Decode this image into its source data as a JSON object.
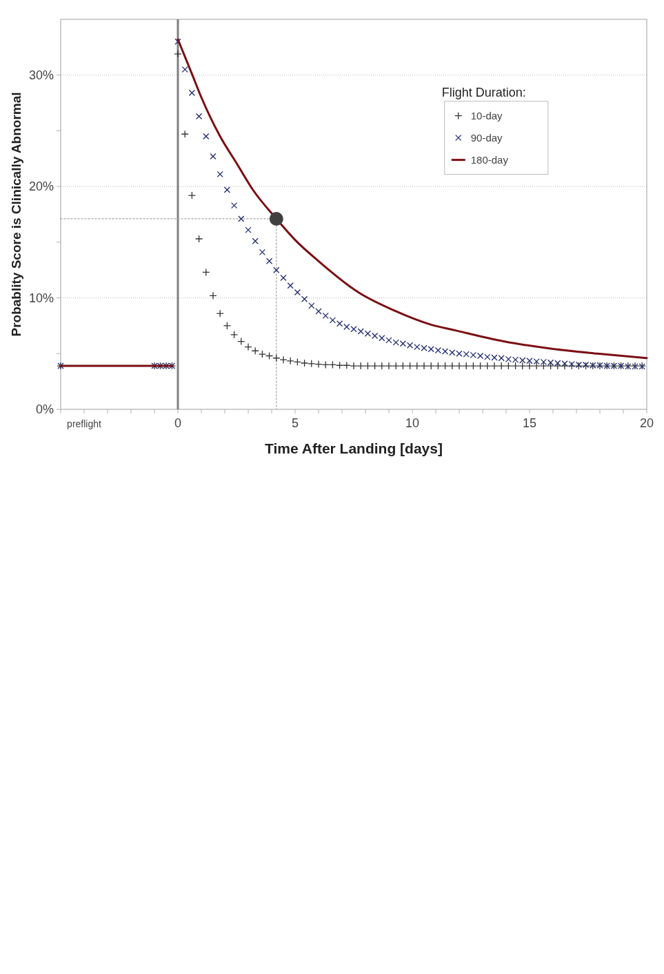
{
  "chart_data": {
    "type": "scatter",
    "xlabel": "Time After Landing [days]",
    "ylabel": "Probablity Score is Clinically Abnormal",
    "legend_title": "Flight Duration:",
    "xlim": [
      -5,
      20
    ],
    "ylim": [
      0,
      35
    ],
    "xticks": [
      {
        "value": -5,
        "label": null
      },
      {
        "value": -4,
        "label": "preflight"
      },
      {
        "value": -3,
        "label": null
      },
      {
        "value": -2,
        "label": null
      },
      {
        "value": -1,
        "label": null
      },
      0,
      {
        "value": 1,
        "label": null
      },
      {
        "value": 2,
        "label": null
      },
      {
        "value": 3,
        "label": null
      },
      {
        "value": 4,
        "label": null
      },
      5,
      {
        "value": 6,
        "label": null
      },
      {
        "value": 7,
        "label": null
      },
      {
        "value": 8,
        "label": null
      },
      {
        "value": 9,
        "label": null
      },
      10,
      {
        "value": 11,
        "label": null
      },
      {
        "value": 12,
        "label": null
      },
      {
        "value": 13,
        "label": null
      },
      {
        "value": 14,
        "label": null
      },
      15,
      {
        "value": 16,
        "label": null
      },
      {
        "value": 17,
        "label": null
      },
      {
        "value": 18,
        "label": null
      },
      {
        "value": 19,
        "label": null
      },
      20
    ],
    "yticks": [
      {
        "value": 0,
        "label": "0%"
      },
      {
        "value": 5,
        "label": null
      },
      {
        "value": 10,
        "label": "10%"
      },
      {
        "value": 15,
        "label": null
      },
      {
        "value": 20,
        "label": "20%"
      },
      {
        "value": 25,
        "label": null
      },
      {
        "value": 30,
        "label": "30%"
      }
    ],
    "grid": "y",
    "legend": "top right",
    "ref_lines": [
      {
        "axis": "x",
        "value": 0,
        "color": "#808080"
      }
    ],
    "series": [
      {
        "type": "line",
        "color": "#a0a0a0",
        "line_style": "dotted",
        "marker": "none",
        "x": [
          -5,
          4.2
        ],
        "values": [
          17.1,
          17.1
        ]
      },
      {
        "type": "line",
        "color": "#a0a0a0",
        "line_style": "dotted",
        "marker": "none",
        "x": [
          4.2,
          4.2
        ],
        "values": [
          17.1,
          0
        ]
      },
      {
        "name": "10-day",
        "marker": "plus",
        "color": "#333333",
        "x": [
          -5,
          -1,
          -0.75,
          -0.5,
          -0.25,
          0,
          0.3,
          0.6,
          0.9,
          1.2,
          1.5,
          1.8,
          2.1,
          2.4,
          2.7,
          3.0,
          3.3,
          3.6,
          3.9,
          4.2,
          4.5,
          4.8,
          5.1,
          5.4,
          5.7,
          6.0,
          6.3,
          6.6,
          6.9,
          7.2,
          7.5,
          7.8,
          8.1,
          8.4,
          8.7,
          9.0,
          9.3,
          9.6,
          9.9,
          10.2,
          10.5,
          10.8,
          11.1,
          11.4,
          11.7,
          12.0,
          12.3,
          12.6,
          12.9,
          13.2,
          13.5,
          13.8,
          14.1,
          14.4,
          14.7,
          15.0,
          15.3,
          15.6,
          15.9,
          16.2,
          16.5,
          16.8,
          17.1,
          17.4,
          17.7,
          18.0,
          18.3,
          18.6,
          18.9,
          19.2,
          19.5,
          19.8
        ],
        "values": [
          3.9,
          3.9,
          3.9,
          3.9,
          3.9,
          31.9,
          24.7,
          19.2,
          15.3,
          12.3,
          10.2,
          8.6,
          7.5,
          6.7,
          6.1,
          5.6,
          5.25,
          4.95,
          4.8,
          4.6,
          4.45,
          4.35,
          4.25,
          4.15,
          4.1,
          4.05,
          4.0,
          4.0,
          3.95,
          3.95,
          3.9,
          3.9,
          3.9,
          3.9,
          3.9,
          3.9,
          3.9,
          3.9,
          3.9,
          3.9,
          3.9,
          3.9,
          3.9,
          3.9,
          3.9,
          3.9,
          3.9,
          3.9,
          3.9,
          3.9,
          3.9,
          3.9,
          3.9,
          3.9,
          3.9,
          3.9,
          3.9,
          3.9,
          3.9,
          3.9,
          3.9,
          3.9,
          3.9,
          3.9,
          3.9,
          3.9,
          3.9,
          3.9,
          3.9,
          3.9,
          3.9,
          3.9
        ]
      },
      {
        "name": "90-day",
        "marker": "cross",
        "color": "#1f2a6e",
        "x": [
          -5,
          -1,
          -0.75,
          -0.5,
          -0.25,
          0,
          0.3,
          0.6,
          0.9,
          1.2,
          1.5,
          1.8,
          2.1,
          2.4,
          2.7,
          3.0,
          3.3,
          3.6,
          3.9,
          4.2,
          4.5,
          4.8,
          5.1,
          5.4,
          5.7,
          6.0,
          6.3,
          6.6,
          6.9,
          7.2,
          7.5,
          7.8,
          8.1,
          8.4,
          8.7,
          9.0,
          9.3,
          9.6,
          9.9,
          10.2,
          10.5,
          10.8,
          11.1,
          11.4,
          11.7,
          12.0,
          12.3,
          12.6,
          12.9,
          13.2,
          13.5,
          13.8,
          14.1,
          14.4,
          14.7,
          15.0,
          15.3,
          15.6,
          15.9,
          16.2,
          16.5,
          16.8,
          17.1,
          17.4,
          17.7,
          18.0,
          18.3,
          18.6,
          18.9,
          19.2,
          19.5,
          19.8
        ],
        "values": [
          3.9,
          3.9,
          3.9,
          3.9,
          3.9,
          33.0,
          30.5,
          28.4,
          26.3,
          24.5,
          22.7,
          21.1,
          19.7,
          18.3,
          17.1,
          16.1,
          15.1,
          14.1,
          13.3,
          12.5,
          11.8,
          11.1,
          10.5,
          9.9,
          9.3,
          8.8,
          8.4,
          8.0,
          7.7,
          7.4,
          7.2,
          7.0,
          6.8,
          6.6,
          6.4,
          6.2,
          6.0,
          5.9,
          5.75,
          5.6,
          5.5,
          5.4,
          5.3,
          5.2,
          5.1,
          5.0,
          4.95,
          4.87,
          4.8,
          4.7,
          4.65,
          4.6,
          4.5,
          4.45,
          4.4,
          4.35,
          4.3,
          4.25,
          4.2,
          4.15,
          4.1,
          4.05,
          4.0,
          4.0,
          3.95,
          3.95,
          3.9,
          3.9,
          3.9,
          3.85,
          3.85,
          3.85
        ]
      },
      {
        "name": "180-day",
        "type": "line",
        "marker": "none",
        "line_style": "solid",
        "color": "#7a0f14",
        "x": [
          -5,
          -0.25,
          -0.1,
          0,
          0.6,
          1,
          1.8,
          2.5,
          3.2,
          4.2,
          5,
          6,
          7.7,
          9.25,
          10.8,
          11.8,
          13.9,
          15.9,
          17.9,
          20
        ],
        "values": [
          3.9,
          3.9,
          null,
          33.2,
          30.1,
          28.0,
          24.5,
          22.1,
          19.7,
          17.1,
          15.2,
          13.3,
          10.5,
          8.85,
          7.6,
          7.1,
          6.1,
          5.45,
          5.0,
          4.6
        ]
      },
      {
        "marker": "circle",
        "color": "#404040",
        "x": [
          4.2
        ],
        "values": [
          17.1
        ]
      }
    ]
  }
}
